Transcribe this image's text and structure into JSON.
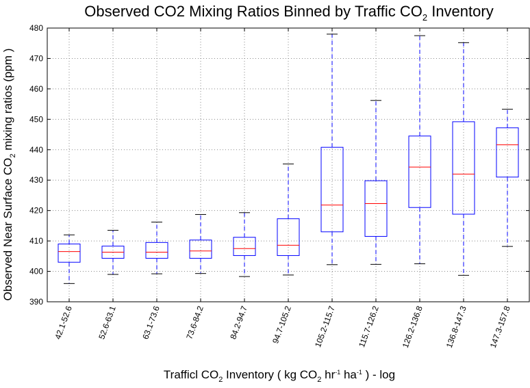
{
  "chart_data": {
    "type": "box",
    "title": "Observed CO2 Mixing Ratios  Binned by Traffic CO",
    "title_sub": "2",
    "title_tail": " Inventory",
    "ylabel": "Observed Near Surface CO",
    "ylabel_sub": "2",
    "ylabel_tail": " mixing ratios (ppm )",
    "xlabel": "Trafficl CO",
    "xlabel_sub": "2",
    "xlabel_mid": " Inventory ( kg CO",
    "xlabel_sub2": "2",
    "xlabel_hr": " hr",
    "xlabel_sup1": "-1",
    "xlabel_ha": " ha",
    "xlabel_sup2": "-1",
    "xlabel_tail": " ) - log",
    "ylim": [
      390,
      480
    ],
    "yticks": [
      390,
      400,
      410,
      420,
      430,
      440,
      450,
      460,
      470,
      480
    ],
    "grid": true,
    "categories": [
      "42.1-52.6",
      "52.6-63.1",
      "63.1-73.6",
      "73.6-84.2",
      "84.2-94.7",
      "94.7-105.2",
      "105.2-115.7",
      "115.7-126.2",
      "126.2-136.8",
      "136.8-147.3",
      "147.3-157.8"
    ],
    "boxes": [
      {
        "whislo": 396.0,
        "q1": 403.0,
        "med": 406.5,
        "q3": 409.0,
        "whishi": 412.0
      },
      {
        "whislo": 399.0,
        "q1": 404.3,
        "med": 406.3,
        "q3": 408.3,
        "whishi": 413.5
      },
      {
        "whislo": 399.2,
        "q1": 404.3,
        "med": 406.3,
        "q3": 409.5,
        "whishi": 416.2
      },
      {
        "whislo": 399.3,
        "q1": 404.3,
        "med": 406.7,
        "q3": 410.3,
        "whishi": 418.7
      },
      {
        "whislo": 398.3,
        "q1": 405.2,
        "med": 407.5,
        "q3": 411.2,
        "whishi": 419.3
      },
      {
        "whislo": 398.8,
        "q1": 405.2,
        "med": 408.6,
        "q3": 417.3,
        "whishi": 435.3
      },
      {
        "whislo": 402.2,
        "q1": 413.0,
        "med": 421.8,
        "q3": 440.8,
        "whishi": 478.0
      },
      {
        "whislo": 402.3,
        "q1": 411.5,
        "med": 422.3,
        "q3": 429.8,
        "whishi": 456.2
      },
      {
        "whislo": 402.5,
        "q1": 421.0,
        "med": 434.3,
        "q3": 444.5,
        "whishi": 477.5
      },
      {
        "whislo": 398.7,
        "q1": 418.8,
        "med": 432.0,
        "q3": 449.2,
        "whishi": 475.2
      },
      {
        "whislo": 408.2,
        "q1": 431.0,
        "med": 441.6,
        "q3": 447.2,
        "whishi": 453.3
      }
    ],
    "colors": {
      "box": "#0000ff",
      "median": "#ff0000",
      "cap": "#000000",
      "grid": "#888888",
      "frame": "#000000"
    }
  }
}
